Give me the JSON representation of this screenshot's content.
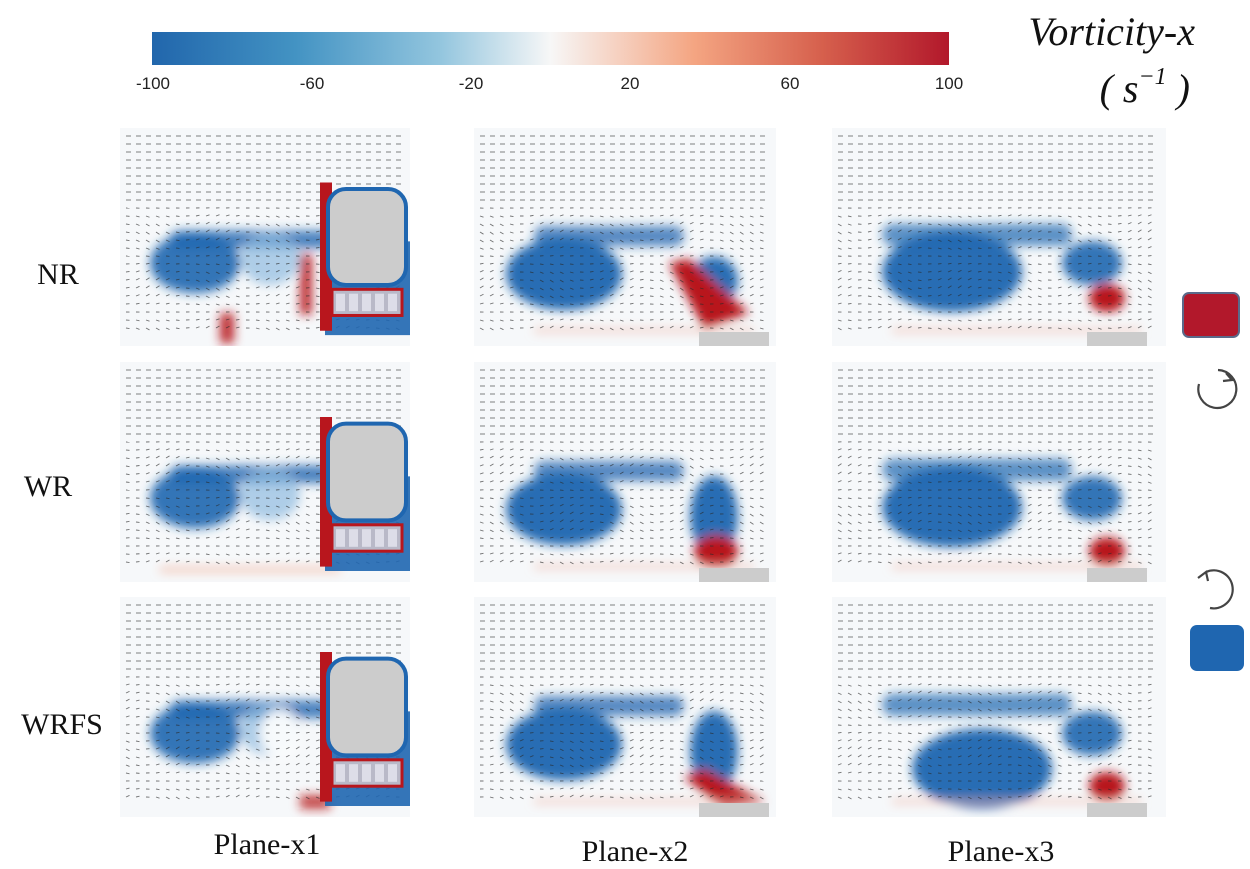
{
  "colorbar": {
    "title": "Vorticity-x",
    "unit_base": "( s",
    "unit_exp": "−1",
    "unit_close": " )",
    "ticks": [
      "-100",
      "-60",
      "-20",
      "20",
      "60",
      "100"
    ],
    "range": [
      -100,
      100
    ],
    "colors": [
      "#2166ac",
      "#f7f7f7",
      "#b2182b"
    ]
  },
  "rows": [
    "NR",
    "WR",
    "WRFS"
  ],
  "columns": [
    "Plane-x1",
    "Plane-x2",
    "Plane-x3"
  ],
  "legend": {
    "positive_color": "#b2182b",
    "negative_color": "#1f66b0",
    "clockwise_icon": "clockwise-rotation-icon",
    "counterclockwise_icon": "counterclockwise-rotation-icon"
  }
}
